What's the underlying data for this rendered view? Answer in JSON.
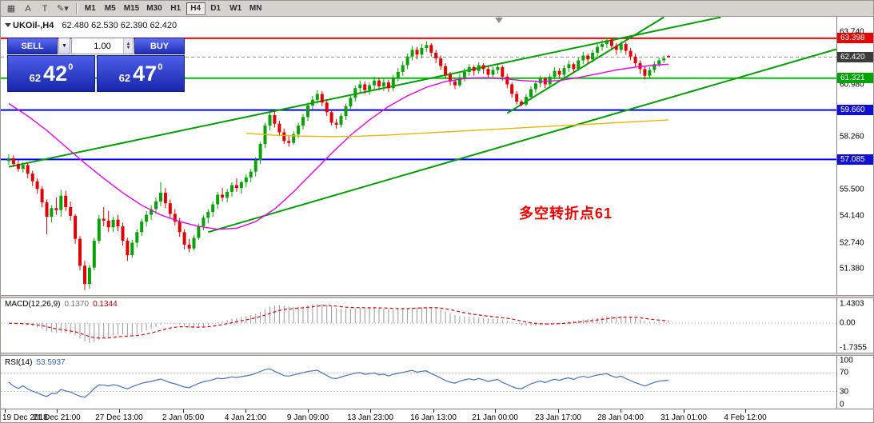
{
  "toolbar": {
    "left_icons": [
      {
        "name": "chart-window-icon",
        "glyph": "▦"
      },
      {
        "name": "letter-a-icon",
        "glyph": "A"
      },
      {
        "name": "letter-t-icon",
        "glyph": "T"
      },
      {
        "name": "draw-tools-dropdown-icon",
        "glyph": "✎▾"
      }
    ],
    "timeframes": [
      "M1",
      "M5",
      "M15",
      "M30",
      "H1",
      "H4",
      "D1",
      "W1",
      "MN"
    ],
    "active_timeframe": "H4"
  },
  "chart_header": {
    "title": "UKOil-,H4",
    "ohlc": "62.480 62.530 62.390 62.420"
  },
  "trade_panel": {
    "sell_label": "SELL",
    "buy_label": "BUY",
    "volume": "1.00",
    "sell_price_main": "62",
    "sell_price_pips": "42",
    "sell_price_sup": "0",
    "buy_price_main": "62",
    "buy_price_pips": "47",
    "buy_price_sup": "0"
  },
  "annotation": {
    "text": "多空转折点61",
    "color": "#f50000"
  },
  "indicators": {
    "macd_label": "MACD(12,26,9)",
    "macd_value": "0.1370",
    "macd_signal": "0.1344",
    "macd_axis": [
      "1.4303",
      "0.00",
      "-1.7355"
    ],
    "rsi_label": "RSI(14)",
    "rsi_value": "53.5937",
    "rsi_axis": [
      "100",
      "70",
      "30",
      "0"
    ]
  },
  "price_axis": {
    "plain": [
      "63.740",
      "60.980",
      "58.260",
      "55.500",
      "54.140",
      "52.740",
      "51.380"
    ],
    "badges": [
      {
        "text": "63.398",
        "value": 63.398,
        "color": "#e60000"
      },
      {
        "text": "62.420",
        "value": 62.42,
        "color": "#3c3c3c"
      },
      {
        "text": "61.321",
        "value": 61.321,
        "color": "#00a400"
      },
      {
        "text": "59.660",
        "value": 59.66,
        "color": "#1010d2"
      },
      {
        "text": "57.085",
        "value": 57.085,
        "color": "#1010d2"
      }
    ]
  },
  "time_axis": {
    "labels": [
      {
        "pos": -0.8,
        "text": "19 Dec 2018"
      },
      {
        "pos": 10.1,
        "text": "21 Dec 21:00"
      },
      {
        "pos": 23.3,
        "text": "27 Dec 13:00"
      },
      {
        "pos": 36.7,
        "text": "2 Jan 05:00"
      },
      {
        "pos": 49.9,
        "text": "4 Jan 21:00"
      },
      {
        "pos": 63.0,
        "text": "9 Jan 09:00"
      },
      {
        "pos": 76.2,
        "text": "13 Jan 23:00"
      },
      {
        "pos": 89.4,
        "text": "16 Jan 13:00"
      },
      {
        "pos": 102.5,
        "text": "21 Jan 00:00"
      },
      {
        "pos": 115.8,
        "text": "23 Jan 17:00"
      },
      {
        "pos": 128.9,
        "text": "28 Jan 04:00"
      },
      {
        "pos": 142.1,
        "text": "31 Jan 01:00"
      },
      {
        "pos": 155.2,
        "text": "4 Feb 12:00"
      }
    ]
  },
  "chart_data": {
    "type": "candlestick",
    "symbol": "UKOil-",
    "period": "H4",
    "current": {
      "open": 62.48,
      "high": 62.53,
      "low": 62.39,
      "close": 62.42
    },
    "y_range": [
      50.02,
      64.52
    ],
    "style": {
      "up_color": "#0aa00a",
      "down_color": "#e00000"
    },
    "candles": [
      [
        57.0,
        57.35,
        56.8,
        57.15
      ],
      [
        57.15,
        57.3,
        56.7,
        56.85
      ],
      [
        56.85,
        57.05,
        56.45,
        56.6
      ],
      [
        56.6,
        56.95,
        56.4,
        56.8
      ],
      [
        56.8,
        56.9,
        56.1,
        56.35
      ],
      [
        56.35,
        56.5,
        55.7,
        55.95
      ],
      [
        55.95,
        56.1,
        55.3,
        55.55
      ],
      [
        55.55,
        55.7,
        54.6,
        54.85
      ],
      [
        54.85,
        55.0,
        53.2,
        54.1
      ],
      [
        54.1,
        54.7,
        53.8,
        54.55
      ],
      [
        54.55,
        55.1,
        54.2,
        54.45
      ],
      [
        54.45,
        55.5,
        54.1,
        55.2
      ],
      [
        55.2,
        55.45,
        54.4,
        54.6
      ],
      [
        54.6,
        54.9,
        53.9,
        54.15
      ],
      [
        54.15,
        54.25,
        52.7,
        52.95
      ],
      [
        52.95,
        53.1,
        51.3,
        51.55
      ],
      [
        51.55,
        51.8,
        50.28,
        50.6
      ],
      [
        50.6,
        51.6,
        50.35,
        51.45
      ],
      [
        51.45,
        53.0,
        51.3,
        52.85
      ],
      [
        52.85,
        54.2,
        52.7,
        54.0
      ],
      [
        54.0,
        54.6,
        53.6,
        53.9
      ],
      [
        53.9,
        54.4,
        53.3,
        53.55
      ],
      [
        53.55,
        54.1,
        53.3,
        53.95
      ],
      [
        53.95,
        54.2,
        53.35,
        53.6
      ],
      [
        53.6,
        53.8,
        52.6,
        52.85
      ],
      [
        52.85,
        53.0,
        51.8,
        52.1
      ],
      [
        52.1,
        52.9,
        51.95,
        52.75
      ],
      [
        52.75,
        53.45,
        52.5,
        53.3
      ],
      [
        53.3,
        54.0,
        53.1,
        53.85
      ],
      [
        53.85,
        54.4,
        53.6,
        54.2
      ],
      [
        54.2,
        54.7,
        53.95,
        54.5
      ],
      [
        54.5,
        55.1,
        54.25,
        54.9
      ],
      [
        54.9,
        55.9,
        54.65,
        55.35
      ],
      [
        55.35,
        55.6,
        54.55,
        54.8
      ],
      [
        54.8,
        55.0,
        54.05,
        54.25
      ],
      [
        54.25,
        54.5,
        53.65,
        53.85
      ],
      [
        53.85,
        54.05,
        53.05,
        53.3
      ],
      [
        53.3,
        53.45,
        52.4,
        52.65
      ],
      [
        52.65,
        52.95,
        52.25,
        52.45
      ],
      [
        52.45,
        53.15,
        52.35,
        53.0
      ],
      [
        53.0,
        53.75,
        52.9,
        53.6
      ],
      [
        53.6,
        54.2,
        53.4,
        54.05
      ],
      [
        54.05,
        54.5,
        53.75,
        54.35
      ],
      [
        54.35,
        54.9,
        54.1,
        54.75
      ],
      [
        54.75,
        55.4,
        54.5,
        55.25
      ],
      [
        55.25,
        55.6,
        54.9,
        55.1
      ],
      [
        55.1,
        55.55,
        54.85,
        55.4
      ],
      [
        55.4,
        55.9,
        55.15,
        55.75
      ],
      [
        55.75,
        56.1,
        55.4,
        55.6
      ],
      [
        55.6,
        56.0,
        55.3,
        55.9
      ],
      [
        55.9,
        56.3,
        55.65,
        56.15
      ],
      [
        56.15,
        56.6,
        55.9,
        56.45
      ],
      [
        56.45,
        57.2,
        56.2,
        57.05
      ],
      [
        57.05,
        58.0,
        56.85,
        57.9
      ],
      [
        57.9,
        59.0,
        57.7,
        58.85
      ],
      [
        58.85,
        59.66,
        58.6,
        59.4
      ],
      [
        59.4,
        59.6,
        58.75,
        58.95
      ],
      [
        58.95,
        59.1,
        58.3,
        58.5
      ],
      [
        58.5,
        58.7,
        57.9,
        58.05
      ],
      [
        58.05,
        58.3,
        57.75,
        57.95
      ],
      [
        57.95,
        58.55,
        57.85,
        58.4
      ],
      [
        58.4,
        59.0,
        58.2,
        58.85
      ],
      [
        58.85,
        59.45,
        58.65,
        59.3
      ],
      [
        59.3,
        60.05,
        59.1,
        59.9
      ],
      [
        59.9,
        60.4,
        59.7,
        60.2
      ],
      [
        60.2,
        60.7,
        60.0,
        60.5
      ],
      [
        60.5,
        60.65,
        59.85,
        60.05
      ],
      [
        60.05,
        60.2,
        59.35,
        59.55
      ],
      [
        59.55,
        59.7,
        58.85,
        59.0
      ],
      [
        59.0,
        59.2,
        58.7,
        58.9
      ],
      [
        58.9,
        59.5,
        58.75,
        59.35
      ],
      [
        59.35,
        60.0,
        59.15,
        59.85
      ],
      [
        59.85,
        60.45,
        59.65,
        60.3
      ],
      [
        60.3,
        60.95,
        60.1,
        60.8
      ],
      [
        60.8,
        61.2,
        60.55,
        61.0
      ],
      [
        61.0,
        61.15,
        60.5,
        60.7
      ],
      [
        60.7,
        61.1,
        60.45,
        60.95
      ],
      [
        60.95,
        61.4,
        60.7,
        61.2
      ],
      [
        61.2,
        61.35,
        60.7,
        60.9
      ],
      [
        60.9,
        61.3,
        60.65,
        61.1
      ],
      [
        61.1,
        61.25,
        60.6,
        60.8
      ],
      [
        60.8,
        61.5,
        60.65,
        61.35
      ],
      [
        61.35,
        61.85,
        61.15,
        61.65
      ],
      [
        61.65,
        62.2,
        61.45,
        62.0
      ],
      [
        62.0,
        62.6,
        61.8,
        62.45
      ],
      [
        62.45,
        63.0,
        62.25,
        62.8
      ],
      [
        62.8,
        62.95,
        62.3,
        62.55
      ],
      [
        62.55,
        63.1,
        62.35,
        62.9
      ],
      [
        62.9,
        63.25,
        62.7,
        63.05
      ],
      [
        63.05,
        63.15,
        62.45,
        62.65
      ],
      [
        62.65,
        62.8,
        62.1,
        62.35
      ],
      [
        62.35,
        62.5,
        61.75,
        61.95
      ],
      [
        61.95,
        62.1,
        61.3,
        61.5
      ],
      [
        61.5,
        61.65,
        60.95,
        61.15
      ],
      [
        61.15,
        61.3,
        60.75,
        60.95
      ],
      [
        60.95,
        61.55,
        60.85,
        61.35
      ],
      [
        61.35,
        61.85,
        61.15,
        61.65
      ],
      [
        61.65,
        62.05,
        61.45,
        61.9
      ],
      [
        61.9,
        62.0,
        61.45,
        61.7
      ],
      [
        61.7,
        62.15,
        61.55,
        62.0
      ],
      [
        62.0,
        62.1,
        61.55,
        61.8
      ],
      [
        61.8,
        61.95,
        61.3,
        61.5
      ],
      [
        61.5,
        61.9,
        61.35,
        61.75
      ],
      [
        61.75,
        62.05,
        61.55,
        61.9
      ],
      [
        61.9,
        62.0,
        61.2,
        61.4
      ],
      [
        61.4,
        61.55,
        60.8,
        61.0
      ],
      [
        61.0,
        61.1,
        60.3,
        60.5
      ],
      [
        60.5,
        60.65,
        59.95,
        60.1
      ],
      [
        60.1,
        60.2,
        59.85,
        59.95
      ],
      [
        59.95,
        60.5,
        59.85,
        60.35
      ],
      [
        60.35,
        60.9,
        60.2,
        60.75
      ],
      [
        60.75,
        61.2,
        60.55,
        61.05
      ],
      [
        61.05,
        61.45,
        60.85,
        61.3
      ],
      [
        61.3,
        61.4,
        60.8,
        61.0
      ],
      [
        61.0,
        61.55,
        60.9,
        61.4
      ],
      [
        61.4,
        61.9,
        61.25,
        61.7
      ],
      [
        61.7,
        61.85,
        61.3,
        61.5
      ],
      [
        61.5,
        62.0,
        61.35,
        61.85
      ],
      [
        61.85,
        62.25,
        61.65,
        62.05
      ],
      [
        62.05,
        62.15,
        61.6,
        61.8
      ],
      [
        61.8,
        62.4,
        61.7,
        62.25
      ],
      [
        62.25,
        62.7,
        62.05,
        62.5
      ],
      [
        62.5,
        62.6,
        62.05,
        62.3
      ],
      [
        62.3,
        62.8,
        62.15,
        62.65
      ],
      [
        62.65,
        63.1,
        62.45,
        62.95
      ],
      [
        62.95,
        63.3,
        62.75,
        63.1
      ],
      [
        63.1,
        63.45,
        62.9,
        63.3
      ],
      [
        63.3,
        63.4,
        62.8,
        63.0
      ],
      [
        63.0,
        63.15,
        62.55,
        62.8
      ],
      [
        62.8,
        63.25,
        62.65,
        63.1
      ],
      [
        63.1,
        63.2,
        62.55,
        62.75
      ],
      [
        62.75,
        62.9,
        62.25,
        62.45
      ],
      [
        62.45,
        62.6,
        61.9,
        62.1
      ],
      [
        62.1,
        62.25,
        61.55,
        61.8
      ],
      [
        61.8,
        61.95,
        61.25,
        61.45
      ],
      [
        61.45,
        61.9,
        61.35,
        61.75
      ],
      [
        61.75,
        62.2,
        61.6,
        62.05
      ],
      [
        62.05,
        62.4,
        61.9,
        62.25
      ],
      [
        62.25,
        62.5,
        62.1,
        62.35
      ],
      [
        62.48,
        62.53,
        62.39,
        62.42
      ]
    ],
    "overlays": {
      "trend_color": "#00a000",
      "trendlines": [
        {
          "from": [
            0,
            56.7
          ],
          "to": [
            150,
            64.5
          ]
        },
        {
          "from": [
            42,
            53.3
          ],
          "to": [
            176,
            62.95
          ]
        },
        {
          "from": [
            105,
            59.5
          ],
          "to": [
            138,
            64.5
          ]
        }
      ],
      "hlines": [
        {
          "price": 63.398,
          "color": "#ff0000",
          "width": 2
        },
        {
          "price": 62.42,
          "color": "#909090",
          "width": 1,
          "dash": "4 3"
        },
        {
          "price": 61.321,
          "color": "#00c000",
          "width": 2
        },
        {
          "price": 59.66,
          "color": "#0000ff",
          "width": 2
        },
        {
          "price": 57.085,
          "color": "#0000ff",
          "width": 2
        }
      ],
      "ma_fast": {
        "color": "#e800e8",
        "points": [
          [
            0,
            60.0
          ],
          [
            4,
            59.35
          ],
          [
            8,
            58.6
          ],
          [
            12,
            57.75
          ],
          [
            16,
            56.9
          ],
          [
            20,
            56.1
          ],
          [
            24,
            55.35
          ],
          [
            28,
            54.7
          ],
          [
            32,
            54.2
          ],
          [
            36,
            53.85
          ],
          [
            40,
            53.6
          ],
          [
            44,
            53.45
          ],
          [
            48,
            53.5
          ],
          [
            52,
            53.85
          ],
          [
            56,
            54.5
          ],
          [
            60,
            55.4
          ],
          [
            64,
            56.4
          ],
          [
            68,
            57.4
          ],
          [
            72,
            58.35
          ],
          [
            76,
            59.15
          ],
          [
            80,
            59.85
          ],
          [
            84,
            60.4
          ],
          [
            88,
            60.85
          ],
          [
            92,
            61.15
          ],
          [
            96,
            61.3
          ],
          [
            100,
            61.35
          ],
          [
            104,
            61.3
          ],
          [
            108,
            61.2
          ],
          [
            112,
            61.15
          ],
          [
            116,
            61.2
          ],
          [
            120,
            61.35
          ],
          [
            124,
            61.55
          ],
          [
            128,
            61.75
          ],
          [
            132,
            61.9
          ],
          [
            136,
            62.0
          ],
          [
            139,
            62.05
          ]
        ]
      },
      "ma_slow": {
        "color": "#e8b800",
        "points": [
          [
            50,
            58.45
          ],
          [
            56,
            58.35
          ],
          [
            62,
            58.3
          ],
          [
            68,
            58.28
          ],
          [
            74,
            58.3
          ],
          [
            80,
            58.36
          ],
          [
            86,
            58.44
          ],
          [
            92,
            58.52
          ],
          [
            98,
            58.6
          ],
          [
            104,
            58.68
          ],
          [
            110,
            58.76
          ],
          [
            116,
            58.84
          ],
          [
            122,
            58.92
          ],
          [
            128,
            59.0
          ],
          [
            134,
            59.08
          ],
          [
            139,
            59.15
          ]
        ]
      }
    },
    "macd": {
      "params": "12,26,9",
      "value": 0.137,
      "signal": 0.1344,
      "axis_max": 1.4303,
      "axis_min": -1.7355
    },
    "rsi": {
      "period": 14,
      "value": 53.5937,
      "levels": [
        70,
        30
      ]
    }
  }
}
